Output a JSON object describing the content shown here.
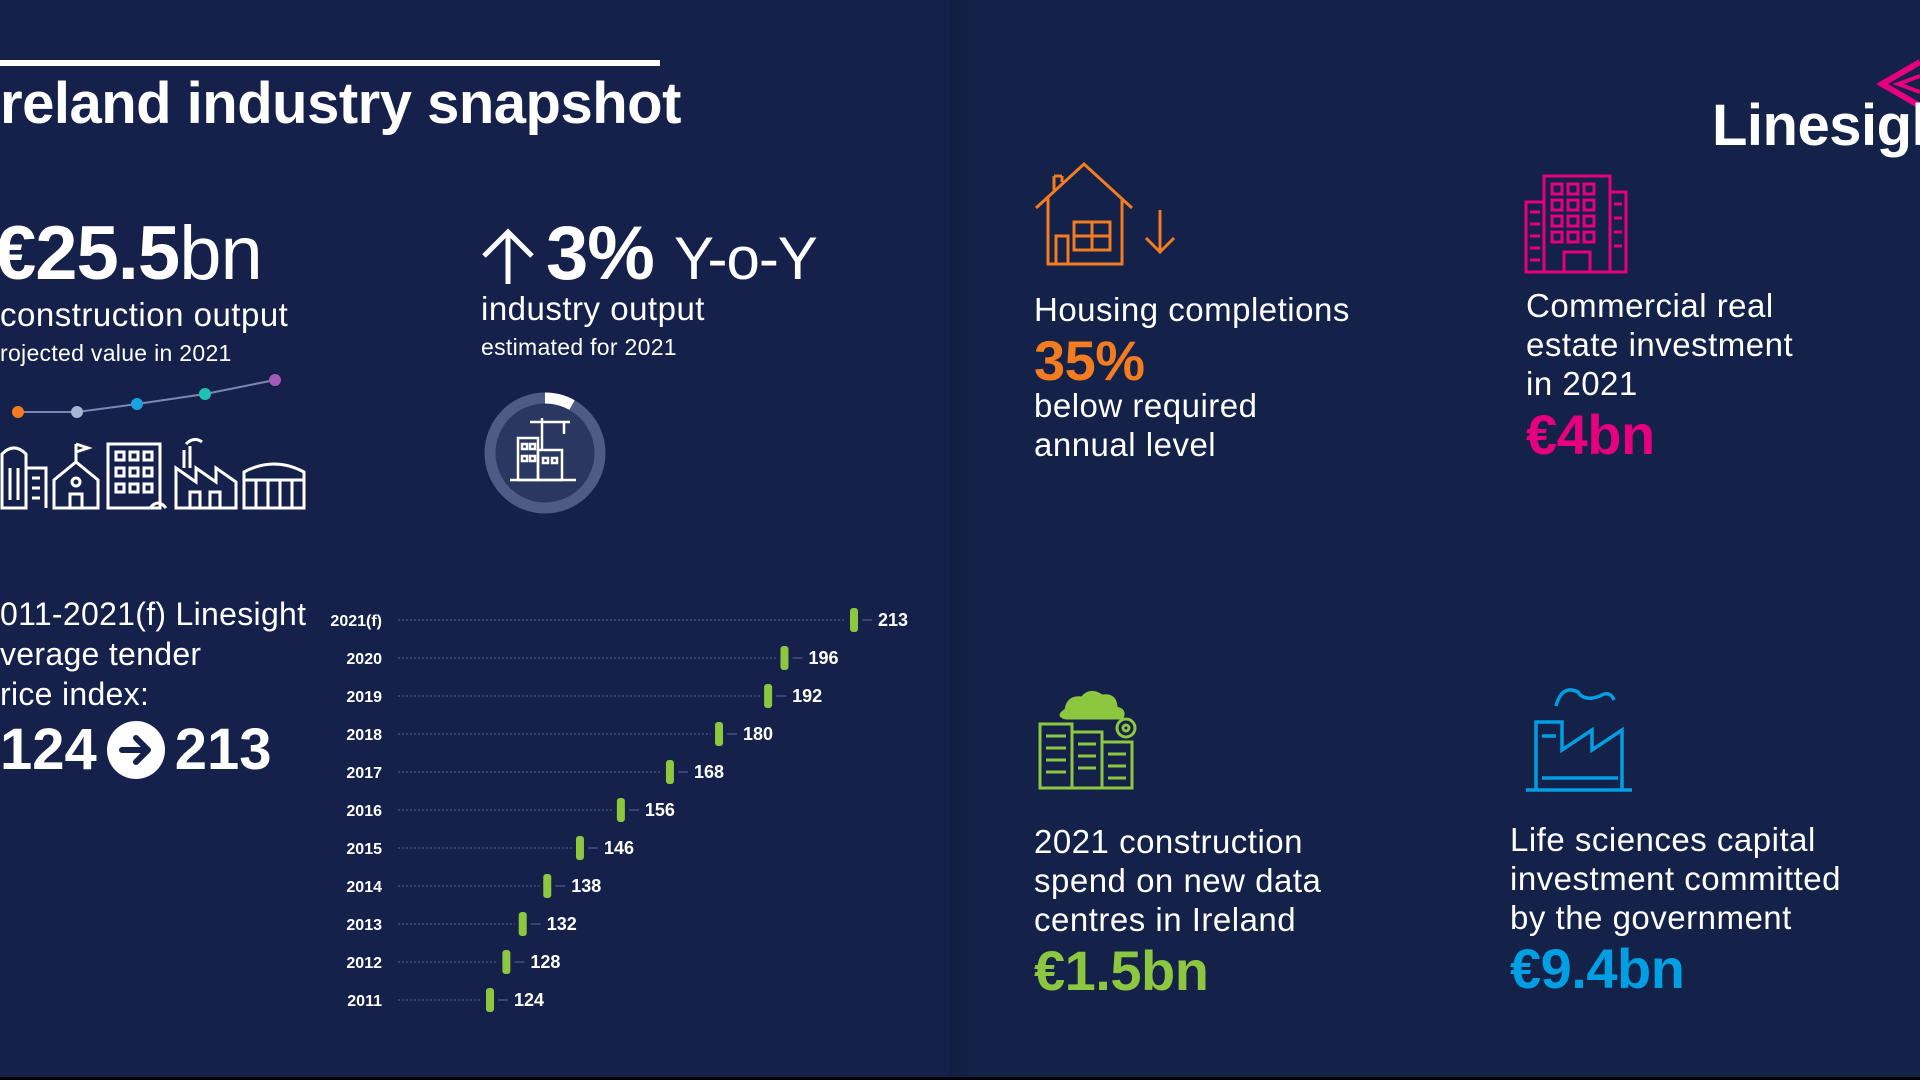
{
  "title": "reland industry snapshot",
  "construction_output": {
    "value": "€25.5",
    "unit": "bn",
    "label": "construction output",
    "sublabel": "rojected value in 2021"
  },
  "industry_output": {
    "value": "3%",
    "unit": "Y-o-Y",
    "label": "industry output",
    "sublabel": "estimated for 2021",
    "trend_icon": "arrow-up-icon"
  },
  "tender_price_index": {
    "label_lines": [
      "011-2021(f) Linesight",
      "verage tender",
      "rice index:"
    ],
    "start": "124",
    "end": "213"
  },
  "chart_data": {
    "type": "dot-range",
    "title": "",
    "categories": [
      "2021(f)",
      "2020",
      "2019",
      "2018",
      "2017",
      "2016",
      "2015",
      "2014",
      "2013",
      "2012",
      "2011"
    ],
    "values": [
      213,
      196,
      192,
      180,
      168,
      156,
      146,
      138,
      132,
      128,
      124
    ],
    "marker_color": "#8dc63f"
  },
  "housing": {
    "title_line": "Housing completions",
    "value": "35%",
    "sub_lines": [
      "below required",
      "annual level"
    ],
    "color": "#f47c20",
    "icon": "house-down-icon"
  },
  "commercial": {
    "title_lines": [
      "Commercial real",
      "estate investment",
      "in 2021"
    ],
    "value": "€4bn",
    "color": "#e6007e",
    "icon": "office-building-icon"
  },
  "data_centres": {
    "title_lines": [
      "2021 construction",
      "spend on new data",
      "centres in Ireland"
    ],
    "value": "€1.5bn",
    "color": "#8dc63f",
    "icon": "data-centre-icon"
  },
  "life_sciences": {
    "title_lines": [
      "Life sciences capital",
      "investment committed",
      "by the government"
    ],
    "value": "€9.4bn",
    "color": "#009fe3",
    "icon": "factory-icon"
  },
  "brand": {
    "name": "Linesigh",
    "color": "#e6007e"
  },
  "colors": {
    "background": "#15214a",
    "text": "#ffffff",
    "chart_line": "#5a6a92"
  }
}
